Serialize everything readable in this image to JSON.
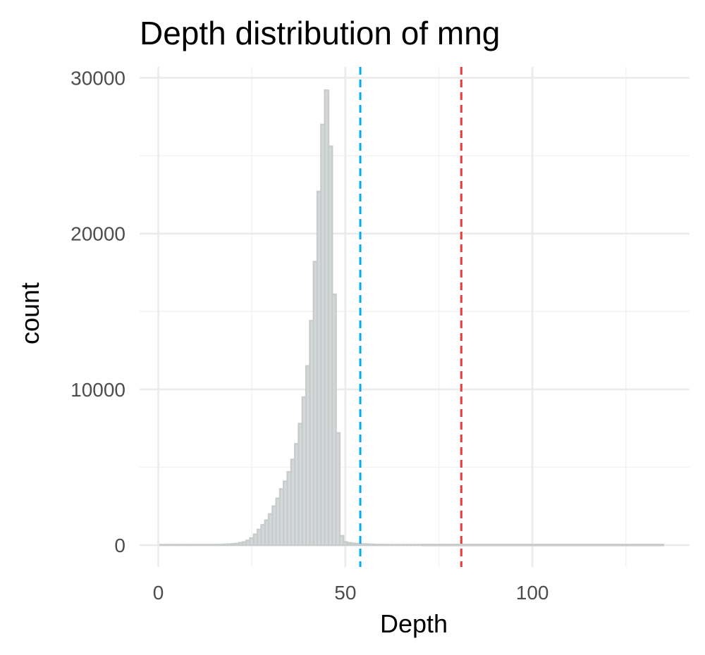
{
  "chart_data": {
    "type": "bar",
    "title": "Depth distribution of mng",
    "xlabel": "Depth",
    "ylabel": "count",
    "xlim": [
      -5,
      142
    ],
    "ylim": [
      -1400,
      30700
    ],
    "x_ticks": [
      0,
      50,
      100
    ],
    "y_ticks": [
      0,
      10000,
      20000,
      30000
    ],
    "x_tick_labels": [
      "0",
      "50",
      "100"
    ],
    "y_tick_labels": [
      "0",
      "10000",
      "20000",
      "30000"
    ],
    "bin_width": 1,
    "bins_x": [
      1,
      2,
      3,
      4,
      5,
      6,
      7,
      8,
      9,
      10,
      11,
      12,
      13,
      14,
      15,
      16,
      17,
      18,
      19,
      20,
      21,
      22,
      23,
      24,
      25,
      26,
      27,
      28,
      29,
      30,
      31,
      32,
      33,
      34,
      35,
      36,
      37,
      38,
      39,
      40,
      41,
      42,
      43,
      44,
      45,
      46,
      47,
      48,
      49,
      50,
      51,
      52,
      53,
      54,
      55,
      56,
      57,
      58,
      59,
      60,
      61,
      62,
      63,
      64,
      65,
      66,
      67,
      68,
      69,
      70
    ],
    "counts": [
      0,
      0,
      0,
      0,
      0,
      0,
      0,
      0,
      0,
      0,
      10,
      10,
      20,
      20,
      30,
      30,
      40,
      50,
      60,
      80,
      100,
      150,
      200,
      300,
      450,
      700,
      1000,
      1300,
      1600,
      2000,
      2500,
      3000,
      3600,
      4100,
      4700,
      5500,
      6500,
      7800,
      9500,
      11500,
      14400,
      18200,
      22700,
      27000,
      29200,
      25600,
      16100,
      7200,
      600,
      200,
      150,
      120,
      100,
      80,
      70,
      60,
      50,
      40,
      35,
      30,
      30,
      25,
      25,
      20,
      20,
      20,
      15,
      15,
      10,
      10
    ],
    "tail_range": [
      70,
      135
    ],
    "tail_count": 10,
    "vlines": [
      {
        "x": 54,
        "color": "#00aeef",
        "style": "dashed"
      },
      {
        "x": 81,
        "color": "#ef3b3b",
        "style": "dashed"
      }
    ],
    "grid": true,
    "legend": "none"
  }
}
